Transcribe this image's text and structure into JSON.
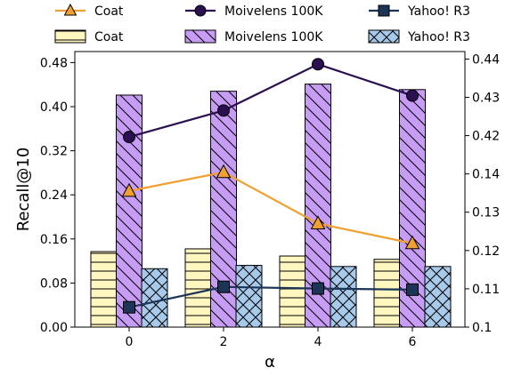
{
  "chart_data": {
    "type": "bar",
    "xlabel": "α",
    "ylabel": "Recall@10",
    "categories": [
      "0",
      "2",
      "4",
      "6"
    ],
    "left_axis": {
      "ylim": [
        0.0,
        0.5
      ],
      "ticks": [
        0.0,
        0.08,
        0.16,
        0.24,
        0.32,
        0.4,
        0.48
      ],
      "tick_labels": [
        "0.00",
        "0.08",
        "0.16",
        "0.24",
        "0.32",
        "0.40",
        "0.48"
      ]
    },
    "right_axis": {
      "tick_labels": [
        "0.1",
        "0.11",
        "0.12",
        "0.13",
        "0.14",
        "0.42",
        "0.43",
        "0.44"
      ]
    },
    "bar_series": [
      {
        "name": "Coat",
        "values": [
          0.137,
          0.142,
          0.129,
          0.123
        ],
        "color": "#fff6c0",
        "hatch": "horizontal"
      },
      {
        "name": "Moivelens 100K",
        "values": [
          0.421,
          0.428,
          0.441,
          0.431
        ],
        "color": "#c79cf5",
        "hatch": "diagonal"
      },
      {
        "name": "Yahoo! R3",
        "values": [
          0.106,
          0.112,
          0.11,
          0.11
        ],
        "color": "#a7c9ea",
        "hatch": "cross"
      }
    ],
    "line_series": [
      {
        "name": "Coat",
        "values": [
          0.247,
          0.281,
          0.188,
          0.152
        ],
        "color": "#f0a030",
        "marker": "triangle"
      },
      {
        "name": "Moivelens 100K",
        "values": [
          0.345,
          0.393,
          0.477,
          0.42
        ],
        "color": "#2a1050",
        "marker": "circle"
      },
      {
        "name": "Yahoo! R3",
        "values": [
          0.036,
          0.073,
          0.07,
          0.068
        ],
        "color": "#1c3557",
        "marker": "square"
      }
    ],
    "legend_position": "top"
  }
}
